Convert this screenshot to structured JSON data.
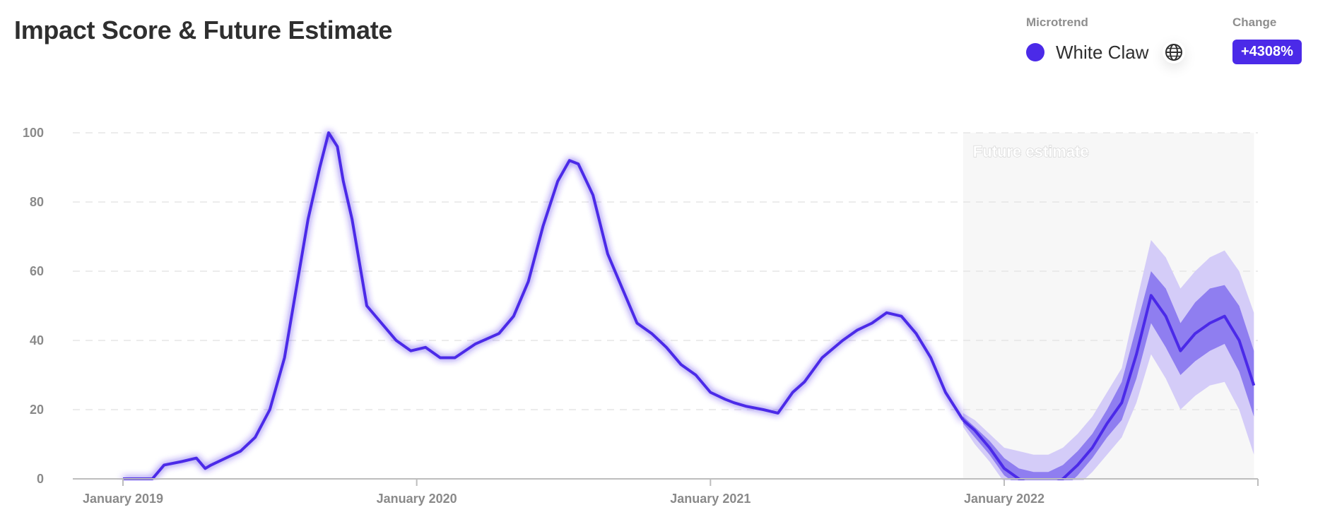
{
  "title": "Impact Score & Future Estimate",
  "legend": {
    "label": "Microtrend",
    "series_name": "White Claw",
    "dot_color": "#4b2ae8",
    "icon": "globe-icon"
  },
  "change": {
    "label": "Change",
    "value": "+4308%"
  },
  "chart_data": {
    "type": "line",
    "title": "Impact Score & Future Estimate",
    "xlabel": "",
    "ylabel": "",
    "ylim": [
      0,
      100
    ],
    "y_ticks": [
      0,
      20,
      40,
      60,
      80,
      100
    ],
    "x_ticks": [
      {
        "label": "January 2019",
        "x": 2019.0
      },
      {
        "label": "January 2020",
        "x": 2020.0
      },
      {
        "label": "January 2021",
        "x": 2021.0
      },
      {
        "label": "January 2022",
        "x": 2022.0
      }
    ],
    "xlim": [
      2018.84,
      2022.85
    ],
    "grid": true,
    "future_region": {
      "label": "Future estimate",
      "start": 2021.86,
      "end": 2022.85
    },
    "colors": {
      "line": "#4b2ae8",
      "band_inner": "#8f7ef0",
      "band_outer": "#d4ccf8",
      "future_bg": "#f7f7f7"
    },
    "series": [
      {
        "name": "White Claw",
        "x": [
          2019.0,
          2019.06,
          2019.1,
          2019.14,
          2019.2,
          2019.25,
          2019.28,
          2019.3,
          2019.35,
          2019.4,
          2019.45,
          2019.5,
          2019.55,
          2019.6,
          2019.63,
          2019.67,
          2019.7,
          2019.73,
          2019.75,
          2019.78,
          2019.83,
          2019.88,
          2019.93,
          2019.98,
          2020.03,
          2020.08,
          2020.13,
          2020.2,
          2020.28,
          2020.33,
          2020.38,
          2020.43,
          2020.48,
          2020.52,
          2020.55,
          2020.6,
          2020.65,
          2020.7,
          2020.75,
          2020.8,
          2020.85,
          2020.9,
          2020.95,
          2021.0,
          2021.05,
          2021.08,
          2021.12,
          2021.18,
          2021.23,
          2021.28,
          2021.32,
          2021.38,
          2021.45,
          2021.5,
          2021.55,
          2021.6,
          2021.65,
          2021.7,
          2021.75,
          2021.8,
          2021.86
        ],
        "y": [
          0,
          0,
          0,
          4,
          5,
          6,
          3,
          4,
          6,
          8,
          12,
          20,
          35,
          60,
          75,
          90,
          100,
          96,
          86,
          75,
          50,
          45,
          40,
          37,
          38,
          35,
          35,
          39,
          42,
          47,
          57,
          73,
          86,
          92,
          91,
          82,
          65,
          55,
          45,
          42,
          38,
          33,
          30,
          25,
          23,
          22,
          21,
          20,
          19,
          25,
          28,
          35,
          40,
          43,
          45,
          48,
          47,
          42,
          35,
          25,
          17
        ]
      }
    ],
    "forecast": {
      "x": [
        2021.86,
        2021.9,
        2021.95,
        2022.0,
        2022.05,
        2022.1,
        2022.15,
        2022.2,
        2022.25,
        2022.3,
        2022.35,
        2022.4,
        2022.45,
        2022.5,
        2022.55,
        2022.6,
        2022.65,
        2022.7,
        2022.75,
        2022.8,
        2022.85
      ],
      "center": [
        17,
        14,
        9,
        3,
        0,
        -2,
        -2,
        0,
        4,
        9,
        16,
        22,
        36,
        53,
        47,
        37,
        42,
        45,
        47,
        40,
        27
      ],
      "inner_low": [
        16,
        12,
        7,
        1,
        -2,
        -5,
        -5,
        -3,
        1,
        6,
        12,
        17,
        29,
        45,
        38,
        30,
        34,
        37,
        39,
        31,
        18
      ],
      "inner_high": [
        18,
        15,
        11,
        6,
        3,
        2,
        2,
        4,
        8,
        13,
        20,
        28,
        44,
        60,
        55,
        45,
        51,
        55,
        56,
        50,
        37
      ],
      "outer_low": [
        15,
        10,
        5,
        -1,
        -5,
        -8,
        -8,
        -6,
        -2,
        2,
        7,
        12,
        22,
        36,
        29,
        20,
        24,
        27,
        28,
        20,
        7
      ],
      "outer_high": [
        19,
        17,
        13,
        9,
        8,
        7,
        7,
        9,
        13,
        18,
        25,
        32,
        51,
        69,
        64,
        55,
        60,
        64,
        66,
        60,
        48
      ]
    }
  }
}
